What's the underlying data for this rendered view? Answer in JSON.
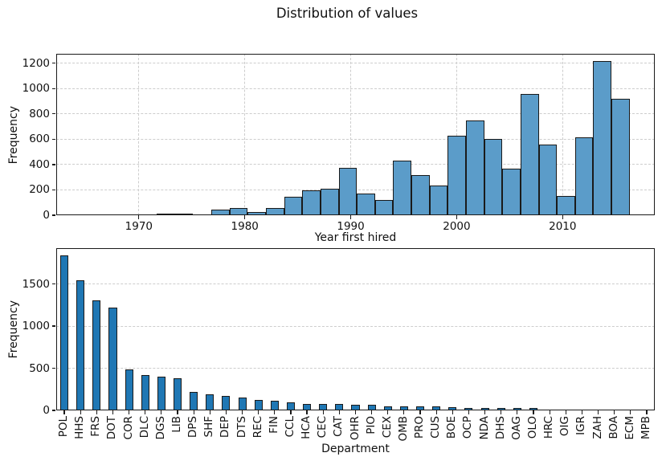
{
  "title": "Distribution of values",
  "chart_data": [
    {
      "type": "histogram",
      "xlabel": "Year first hired",
      "ylabel": "Frequency",
      "bar_color": "#5b9cc9",
      "bar_edge_color": "#1a1a1a",
      "grid": "both, dashed, light-gray",
      "legend": "none",
      "xlim": [
        1962.2,
        2018.7
      ],
      "ylim": [
        0,
        1275
      ],
      "xticks": [
        1970,
        1980,
        1990,
        2000,
        2010
      ],
      "yticks": [
        0,
        200,
        400,
        600,
        800,
        1000,
        1200
      ],
      "bin_start": 1964.83,
      "bin_width": 1.7167,
      "bin_counts": [
        3,
        8,
        8,
        0,
        14,
        12,
        2,
        42,
        58,
        25,
        57,
        145,
        196,
        212,
        372,
        170,
        120,
        430,
        320,
        235,
        625,
        748,
        600,
        370,
        955,
        556,
        155,
        615,
        1220,
        920
      ]
    },
    {
      "type": "bar",
      "xlabel": "Department",
      "ylabel": "Frequency",
      "bar_color": "#1f77b4",
      "bar_edge_color": "#1a1a1a",
      "grid": "y only, dashed, light-gray",
      "legend": "none",
      "ylim": [
        0,
        1925
      ],
      "yticks": [
        0,
        500,
        1000,
        1500
      ],
      "categories": [
        "POL",
        "HHS",
        "FRS",
        "DOT",
        "COR",
        "DLC",
        "DGS",
        "LIB",
        "DPS",
        "SHF",
        "DEP",
        "DTS",
        "REC",
        "FIN",
        "CCL",
        "HCA",
        "CEC",
        "CAT",
        "OHR",
        "PIO",
        "CEX",
        "OMB",
        "PRO",
        "CUS",
        "BOE",
        "OCP",
        "NDA",
        "DHS",
        "OAG",
        "OLO",
        "HRC",
        "OIG",
        "IGR",
        "ZAH",
        "BOA",
        "ECM",
        "MPB"
      ],
      "values": [
        1840,
        1545,
        1305,
        1220,
        490,
        418,
        403,
        378,
        222,
        188,
        168,
        148,
        128,
        118,
        98,
        80,
        78,
        76,
        70,
        64,
        50,
        47,
        45,
        43,
        40,
        32,
        31,
        28,
        28,
        27,
        12,
        10,
        9,
        9,
        8,
        6,
        5
      ]
    }
  ]
}
